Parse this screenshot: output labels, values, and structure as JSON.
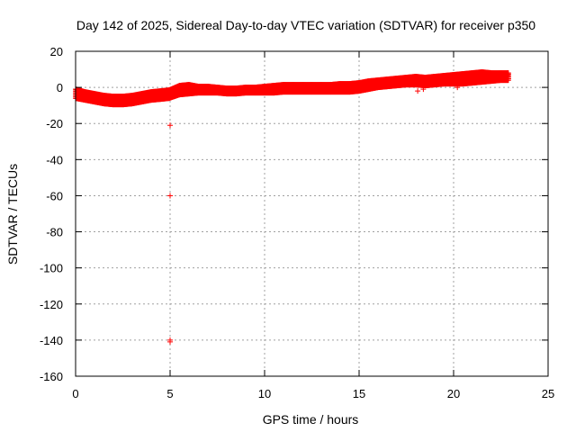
{
  "chart_data": {
    "type": "scatter",
    "title": "Day 142 of 2025, Sidereal Day-to-day VTEC variation (SDTVAR) for receiver p350",
    "xlabel": "GPS time / hours",
    "ylabel": "SDTVAR / TECUs",
    "xlim": [
      0,
      25
    ],
    "ylim": [
      -160,
      20
    ],
    "xticks": [
      "0",
      "5",
      "10",
      "15",
      "20",
      "25"
    ],
    "yticks": [
      "20",
      "0",
      "-20",
      "-40",
      "-60",
      "-80",
      "-100",
      "-120",
      "-140",
      "-160"
    ],
    "grid": true,
    "marker": "plus",
    "series": [
      {
        "name": "SDTVAR",
        "color": "#ff0000",
        "band": {
          "x": [
            0.0,
            0.5,
            1.0,
            1.5,
            2.0,
            2.5,
            3.0,
            3.5,
            4.0,
            4.5,
            4.95,
            5.5,
            6.0,
            6.5,
            7.0,
            7.5,
            8.0,
            8.5,
            9.0,
            9.5,
            10.0,
            10.5,
            11.0,
            11.5,
            12.0,
            12.5,
            13.0,
            13.5,
            14.0,
            14.5,
            15.0,
            15.5,
            16.0,
            16.5,
            17.0,
            17.5,
            18.0,
            18.5,
            19.0,
            19.5,
            20.0,
            20.5,
            21.0,
            21.5,
            22.0,
            22.5,
            22.9
          ],
          "low": [
            -6,
            -7,
            -8,
            -9,
            -9.5,
            -9.5,
            -9,
            -8,
            -7,
            -6.5,
            -6,
            -4,
            -3.5,
            -3,
            -3,
            -3,
            -3.5,
            -3.5,
            -3,
            -3,
            -3,
            -3,
            -2.5,
            -2.5,
            -2.5,
            -2.5,
            -2.5,
            -2.5,
            -2.5,
            -2.5,
            -2,
            -1,
            0,
            0.5,
            1,
            1.5,
            1.5,
            1,
            1.5,
            2,
            2,
            2,
            2.5,
            3,
            3.5,
            4,
            4
          ],
          "high": [
            -1,
            -2.5,
            -3.5,
            -4.5,
            -5,
            -5,
            -4.5,
            -3.5,
            -2.5,
            -2,
            -1.5,
            1,
            1.5,
            0.5,
            0.5,
            0,
            -0.5,
            -0.5,
            0,
            0,
            0.5,
            1,
            1.5,
            1.5,
            1.5,
            1.5,
            1.5,
            1.5,
            2,
            2,
            2.5,
            3.5,
            4,
            4.5,
            5,
            5.5,
            6,
            5.5,
            6,
            6.5,
            7,
            7.5,
            8,
            8.5,
            8,
            8,
            8
          ]
        },
        "outliers": [
          {
            "x": 5.0,
            "y": -21
          },
          {
            "x": 5.0,
            "y": -60
          },
          {
            "x": 5.0,
            "y": -140
          },
          {
            "x": 5.0,
            "y": -141
          },
          {
            "x": 18.1,
            "y": -2
          },
          {
            "x": 18.4,
            "y": -1
          },
          {
            "x": 20.2,
            "y": 0
          }
        ]
      }
    ]
  }
}
